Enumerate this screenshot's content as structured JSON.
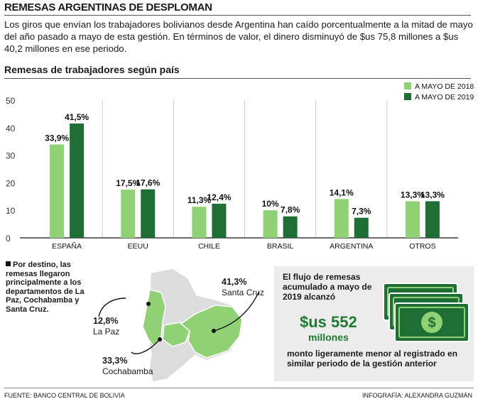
{
  "header": {
    "title": "REMESAS ARGENTINAS DE DESPLOMAN",
    "intro": "Los giros que envían los trabajadores bolivianos desde Argentina han caído porcentualmente a la mitad de mayo del año pasado a mayo de esta gestión. En términos de valor, el dinero disminuyó de $us 75,8 millones a $us 40,2 millones en ese periodo.",
    "subtitle": "Remesas de trabajadores según país"
  },
  "chart_data": {
    "type": "bar",
    "categories": [
      "ESPAÑA",
      "EEUU",
      "CHILE",
      "BRASIL",
      "ARGENTINA",
      "OTROS"
    ],
    "series": [
      {
        "name": "A MAYO DE 2018",
        "values": [
          33.9,
          17.5,
          11.3,
          10,
          14.1,
          13.3
        ],
        "labels": [
          "33,9%",
          "17,5%",
          "11,3%",
          "10%",
          "14,1%",
          "13,3%"
        ],
        "color": "#8fd174"
      },
      {
        "name": "A MAYO DE 2019",
        "values": [
          41.5,
          17.6,
          12.4,
          7.8,
          7.3,
          13.3
        ],
        "labels": [
          "41,5%",
          "17,6%",
          "12,4%",
          "7,8%",
          "7,3%",
          "13,3%"
        ],
        "color": "#1e6e35"
      }
    ],
    "yticks": [
      "0",
      "10",
      "20",
      "30",
      "40",
      "50"
    ],
    "ylim": [
      0,
      50
    ],
    "legend": "top-right",
    "grid": false
  },
  "map_note": {
    "text": "Por destino, las remesas llegaron principalmente a los departamentos de La Paz, Cochabamba y Santa Cruz.",
    "regions": [
      {
        "pct": "41,3%",
        "name": "Santa Cruz"
      },
      {
        "pct": "12,8%",
        "name": "La Paz"
      },
      {
        "pct": "33,3%",
        "name": "Cochabamba"
      }
    ]
  },
  "panel": {
    "text1": "El flujo de remesas acumulado a mayo de 2019 alcanzó",
    "amount": "$us 552",
    "unit": "millones",
    "text2": "monto ligeramente menor al registrado en similar periodo de la gestión anterior",
    "icon": "dollar-bills-icon"
  },
  "footer": {
    "source": "FUENTE: BANCO CENTRAL DE BOLIVIA",
    "credit": "INFOGRAFÍA: ALEXANDRA GUZMÁN"
  }
}
